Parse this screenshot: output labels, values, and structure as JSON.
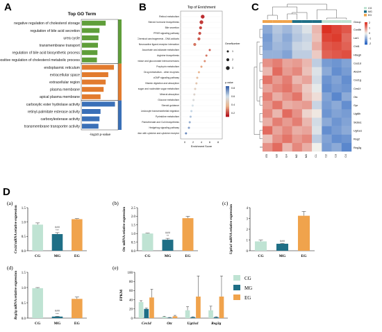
{
  "panel_letters": {
    "a": "A",
    "b": "B",
    "c": "C",
    "d": "D"
  },
  "subpanel_letters": {
    "a": "(a)",
    "b": "(b)",
    "c": "(c)",
    "d": "(d)",
    "e": "(e)"
  },
  "colors": {
    "bp": "#5f9e3a",
    "cc": "#e27b2e",
    "mf": "#3a70b8",
    "cg": "#bfe3d3",
    "mg": "#1f6f86",
    "eg": "#f0a34c"
  },
  "panelA": {
    "title": "Top GO Term",
    "xlabel": "-log10 p-value",
    "terms": [
      {
        "label": "negative regulation of cholesterol storage",
        "value": 4.6,
        "cat": "bp"
      },
      {
        "label": "regulation of bile acid secretion",
        "value": 3.4,
        "cat": "bp"
      },
      {
        "label": "urea cycle",
        "value": 3.2,
        "cat": "bp"
      },
      {
        "label": "transmembrane transport",
        "value": 3.1,
        "cat": "bp"
      },
      {
        "label": "regulation of bile acid biosynthetic process",
        "value": 3.0,
        "cat": "bp"
      },
      {
        "label": "positive regulation of cholesterol metabolic process",
        "value": 2.9,
        "cat": "bp"
      },
      {
        "label": "endoplasmic reticulum",
        "value": 6.2,
        "cat": "cc"
      },
      {
        "label": "extracellular space",
        "value": 5.1,
        "cat": "cc"
      },
      {
        "label": "extracellular region",
        "value": 4.6,
        "cat": "cc"
      },
      {
        "label": "plasma membrane",
        "value": 4.2,
        "cat": "cc"
      },
      {
        "label": "apical plasma membrane",
        "value": 3.6,
        "cat": "cc"
      },
      {
        "label": "carboxylic ester hydrolase activity",
        "value": 6.4,
        "cat": "mf"
      },
      {
        "label": "retinyl-palmitate esterase activity",
        "value": 3.6,
        "cat": "mf"
      },
      {
        "label": "carboxylesterase activity",
        "value": 3.4,
        "cat": "mf"
      },
      {
        "label": "transmembrane transporter activity",
        "value": 3.2,
        "cat": "mf"
      }
    ]
  },
  "panelB": {
    "title": "Top of Enrichment",
    "xlabel": "Enrichment Score",
    "legend_size_title": "GeneNumber",
    "legend_color_title": "p.value",
    "legend_color_ticks": [
      "0.8",
      "0.6",
      "0.4",
      "0.2"
    ],
    "legend_size_ticks": [
      "1",
      "2",
      "3"
    ],
    "xticks": [
      "0",
      "2",
      "4",
      "6",
      "8"
    ],
    "xlim": [
      -1,
      9
    ],
    "pathways": [
      {
        "label": "Retinol metabolism",
        "x": 4.3,
        "size": 3,
        "p": 0.05
      },
      {
        "label": "Steroid hormone biosynthesis",
        "x": 4.0,
        "size": 3,
        "p": 0.08
      },
      {
        "label": "Bile secretion",
        "x": 3.8,
        "size": 2,
        "p": 0.1
      },
      {
        "label": "PPAR signaling pathway",
        "x": 3.6,
        "size": 2,
        "p": 0.12
      },
      {
        "label": "Chemical carcinogenesis - DNA adducts",
        "x": 3.4,
        "size": 2,
        "p": 0.15
      },
      {
        "label": "Neuroactive ligand-receptor interaction",
        "x": 2.4,
        "size": 2,
        "p": 0.2
      },
      {
        "label": "Ascorbate and aldarate metabolism",
        "x": 6.0,
        "size": 1,
        "p": 0.15
      },
      {
        "label": "Arginine biosynthesis",
        "x": 5.2,
        "size": 1,
        "p": 0.2
      },
      {
        "label": "Pentose and glucuronate interconversions",
        "x": 4.8,
        "size": 1,
        "p": 0.25
      },
      {
        "label": "Porphyrin metabolism",
        "x": 4.0,
        "size": 1,
        "p": 0.3
      },
      {
        "label": "Drug metabolism - other enzymes",
        "x": 3.4,
        "size": 1,
        "p": 0.35
      },
      {
        "label": "cGMP signaling pathway",
        "x": 3.0,
        "size": 1,
        "p": 0.4
      },
      {
        "label": "Vitamin digestion and absorption",
        "x": 2.8,
        "size": 1,
        "p": 0.45
      },
      {
        "label": "Amino sugar and nucleotide sugar metabolism",
        "x": 2.5,
        "size": 1,
        "p": 0.5
      },
      {
        "label": "Mineral absorption",
        "x": 2.3,
        "size": 1,
        "p": 0.55
      },
      {
        "label": "Glucose metabolism",
        "x": 2.1,
        "size": 1,
        "p": 0.6
      },
      {
        "label": "Steroid guidance",
        "x": 1.9,
        "size": 1,
        "p": 0.65
      },
      {
        "label": "Leukocyte transendothelial migration",
        "x": 1.6,
        "size": 1,
        "p": 0.7
      },
      {
        "label": "Pyrimidine metabolism",
        "x": 1.4,
        "size": 1,
        "p": 0.75
      },
      {
        "label": "Pantothenate and CoA biosynthesis",
        "x": 1.2,
        "size": 1,
        "p": 0.8
      },
      {
        "label": "Hedgehog signaling pathway",
        "x": 1.0,
        "size": 1,
        "p": 0.85
      },
      {
        "label": "Viral protein interaction with cytokine and cytokine receptor",
        "x": 0.3,
        "size": 1,
        "p": 0.9
      }
    ]
  },
  "panelC": {
    "group_label": "Group",
    "columns": [
      "E5",
      "E6",
      "E4",
      "M2",
      "M3",
      "C1",
      "C2",
      "C3",
      "C4"
    ],
    "col_groups": [
      "eg",
      "eg",
      "eg",
      "mg",
      "mg",
      "mg",
      "cg",
      "cg",
      "cg"
    ],
    "rows": [
      "Cox8b",
      "Lar1",
      "Chil1",
      "Hbegh",
      "Ces1d",
      "Abcb4",
      "Ces1g",
      "Ces1f",
      "Otc",
      "Gpr",
      "Ugt8h",
      "Slc8a1",
      "Ugt1a1",
      "Reg2",
      "Reg3g"
    ],
    "legend_group": [
      "CG",
      "MG",
      "EG"
    ],
    "legend_scale": [
      "2",
      "1",
      "0",
      "-1",
      "-2"
    ],
    "values": [
      [
        -1.0,
        -0.6,
        -0.8,
        -0.5,
        -0.2,
        0.6,
        2.0,
        1.8,
        1.6
      ],
      [
        -1.2,
        -0.7,
        -1.0,
        -0.6,
        -0.4,
        0.5,
        1.8,
        1.9,
        1.4
      ],
      [
        -1.1,
        -0.8,
        -0.9,
        -0.4,
        -0.3,
        0.7,
        1.6,
        1.7,
        1.5
      ],
      [
        -0.9,
        -0.9,
        -1.1,
        -0.5,
        -0.5,
        0.4,
        1.5,
        1.6,
        1.7
      ],
      [
        1.0,
        1.2,
        0.8,
        0.9,
        0.6,
        -0.5,
        -1.2,
        -1.3,
        -1.1
      ],
      [
        0.6,
        1.4,
        0.9,
        1.1,
        0.5,
        -0.2,
        -1.0,
        -1.4,
        -1.2
      ],
      [
        1.3,
        0.9,
        1.2,
        0.6,
        0.8,
        -0.3,
        -1.3,
        -1.1,
        -1.4
      ],
      [
        0.8,
        1.1,
        1.3,
        0.9,
        0.4,
        -0.1,
        -1.4,
        -1.2,
        -1.3
      ],
      [
        1.2,
        0.7,
        1.0,
        1.3,
        0.5,
        0.2,
        -1.1,
        -1.5,
        -1.0
      ],
      [
        0.9,
        1.3,
        0.7,
        0.8,
        0.9,
        -0.4,
        -1.2,
        -1.0,
        -1.4
      ],
      [
        1.1,
        0.6,
        1.4,
        1.0,
        0.3,
        0.1,
        -1.3,
        -1.1,
        -1.2
      ],
      [
        0.7,
        1.2,
        0.9,
        1.2,
        0.6,
        -0.3,
        -1.0,
        -1.3,
        -1.1
      ],
      [
        1.4,
        0.8,
        1.1,
        0.7,
        0.8,
        -0.2,
        -1.4,
        -1.2,
        -1.0
      ],
      [
        0.5,
        1.0,
        1.3,
        0.9,
        1.1,
        -0.5,
        -1.1,
        -1.4,
        -1.3
      ],
      [
        1.0,
        1.4,
        0.6,
        1.1,
        0.7,
        0.0,
        -1.2,
        -1.0,
        -1.5
      ]
    ]
  },
  "chart_data": [
    {
      "type": "bar",
      "id": "a",
      "categories": [
        "CG",
        "MG",
        "EG"
      ],
      "values": [
        0.91,
        0.58,
        1.1
      ],
      "errors": [
        0.06,
        0.05,
        0.02
      ],
      "ylabel_gene": "Ces1d",
      "ylabel_rest": " mRNA relative expression",
      "ylim": [
        0,
        1.5
      ],
      "yticks": [
        "0.0",
        "0.5",
        "1.0",
        "1.5"
      ],
      "annot_mg": [
        "###",
        "***"
      ]
    },
    {
      "type": "bar",
      "id": "b",
      "categories": [
        "CG",
        "MG",
        "EG"
      ],
      "values": [
        1.0,
        0.64,
        1.89
      ],
      "errors": [
        0.02,
        0.08,
        0.11
      ],
      "ylabel_gene": "Otc",
      "ylabel_rest": " mRNA relative expression",
      "ylim": [
        0,
        2.5
      ],
      "yticks": [
        "0.0",
        "0.5",
        "1.0",
        "1.5",
        "2.0",
        "2.5"
      ],
      "annot_mg": [
        "###",
        "**"
      ]
    },
    {
      "type": "bar",
      "id": "c",
      "categories": [
        "CG",
        "MG",
        "EG"
      ],
      "values": [
        0.87,
        0.65,
        3.25
      ],
      "errors": [
        0.12,
        0.03,
        0.4
      ],
      "ylabel_gene": "Ugt1a1",
      "ylabel_rest": " mRNA relative expression",
      "ylim": [
        0,
        4
      ],
      "yticks": [
        "0",
        "1",
        "2",
        "3",
        "4"
      ],
      "annot_mg": [
        "###"
      ]
    },
    {
      "type": "bar",
      "id": "d",
      "categories": [
        "CG",
        "MG",
        "EG"
      ],
      "values": [
        0.98,
        0.05,
        0.63
      ],
      "errors": [
        0.02,
        0.01,
        0.06
      ],
      "ylabel_gene": "Reg3g",
      "ylabel_rest": " mRNA relative expression",
      "ylim": [
        0,
        1.5
      ],
      "yticks": [
        "0.0",
        "0.5",
        "1.0",
        "1.5"
      ],
      "annot_mg": [
        "###",
        "***"
      ]
    },
    {
      "type": "bar",
      "id": "e",
      "ylabel": "FPKM",
      "categories": [
        "Ces1d",
        "Otc",
        "Ugt1a1",
        "Reg3g"
      ],
      "series": [
        {
          "name": "CG",
          "values": [
            35,
            3,
            17,
            17
          ],
          "errors": [
            3,
            1,
            8,
            9
          ]
        },
        {
          "name": "MG",
          "values": [
            20,
            1,
            2,
            2
          ],
          "errors": [
            2,
            0.5,
            1,
            1
          ]
        },
        {
          "name": "EG",
          "values": [
            45,
            4,
            47,
            47
          ],
          "errors": [
            18,
            2,
            45,
            45
          ]
        }
      ],
      "ylim": [
        0,
        100
      ],
      "yticks": [
        "0",
        "20",
        "40",
        "60",
        "80",
        "100"
      ]
    }
  ]
}
